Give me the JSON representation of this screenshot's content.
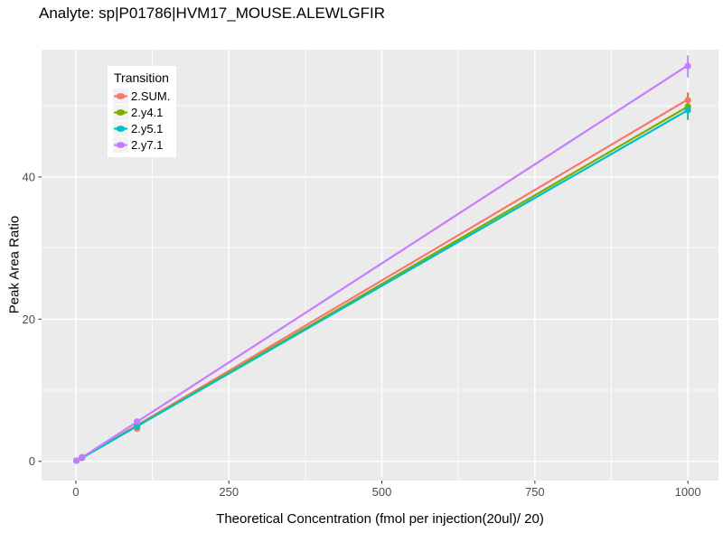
{
  "chart_data": {
    "type": "line",
    "title": "Analyte: sp|P01786|HVM17_MOUSE.ALEWLGFIR",
    "xlabel": "Theoretical Concentration (fmol per injection(20ul)/ 20)",
    "ylabel": "Peak Area Ratio",
    "legend_title": "Transition",
    "legend_position": "inside-top-left",
    "panel_background": "#EBEBEB",
    "grid_color": "#FFFFFF",
    "grid": true,
    "tick_label_color": "#4D4D4D",
    "tick_mark_color": "#333333",
    "x_ticks": [
      0,
      250,
      500,
      750,
      1000
    ],
    "x_minor_ticks": [
      125,
      375,
      625,
      875
    ],
    "y_ticks": [
      0,
      20,
      40
    ],
    "y_minor_ticks": [
      10,
      30,
      50
    ],
    "xlim": [
      -56,
      1050
    ],
    "ylim": [
      -2.7,
      57.9
    ],
    "x": [
      1,
      10,
      100,
      1000
    ],
    "series": [
      {
        "name": "2.SUM.",
        "color": "#F8766D",
        "points": [
          [
            1,
            0.1
          ],
          [
            10,
            0.5
          ],
          [
            100,
            4.6
          ],
          [
            1000,
            50.8
          ]
        ],
        "fit_line": [
          [
            1,
            0.05
          ],
          [
            1000,
            50.9
          ]
        ],
        "error_bars": [
          [
            1000,
            49.8,
            51.9
          ]
        ]
      },
      {
        "name": "2.y4.1",
        "color": "#7CAE00",
        "points": [
          [
            1,
            0.1
          ],
          [
            10,
            0.5
          ],
          [
            100,
            5.0
          ],
          [
            1000,
            49.9
          ]
        ],
        "fit_line": [
          [
            1,
            0.05
          ],
          [
            1000,
            49.9
          ]
        ],
        "error_bars": [
          [
            1000,
            48.0,
            51.8
          ]
        ]
      },
      {
        "name": "2.y5.1",
        "color": "#00BFC4",
        "points": [
          [
            1,
            0.1
          ],
          [
            10,
            0.5
          ],
          [
            100,
            4.9
          ],
          [
            1000,
            49.4
          ]
        ],
        "fit_line": [
          [
            1,
            0.05
          ],
          [
            1000,
            49.4
          ]
        ],
        "error_bars": [
          [
            1000,
            48.1,
            50.7
          ]
        ]
      },
      {
        "name": "2.y7.1",
        "color": "#C77CFF",
        "points": [
          [
            1,
            0.1
          ],
          [
            10,
            0.6
          ],
          [
            100,
            5.6
          ],
          [
            1000,
            55.6
          ]
        ],
        "fit_line": [
          [
            1,
            0.05
          ],
          [
            1000,
            55.7
          ]
        ],
        "error_bars": [
          [
            1000,
            54.0,
            57.1
          ]
        ]
      }
    ]
  }
}
